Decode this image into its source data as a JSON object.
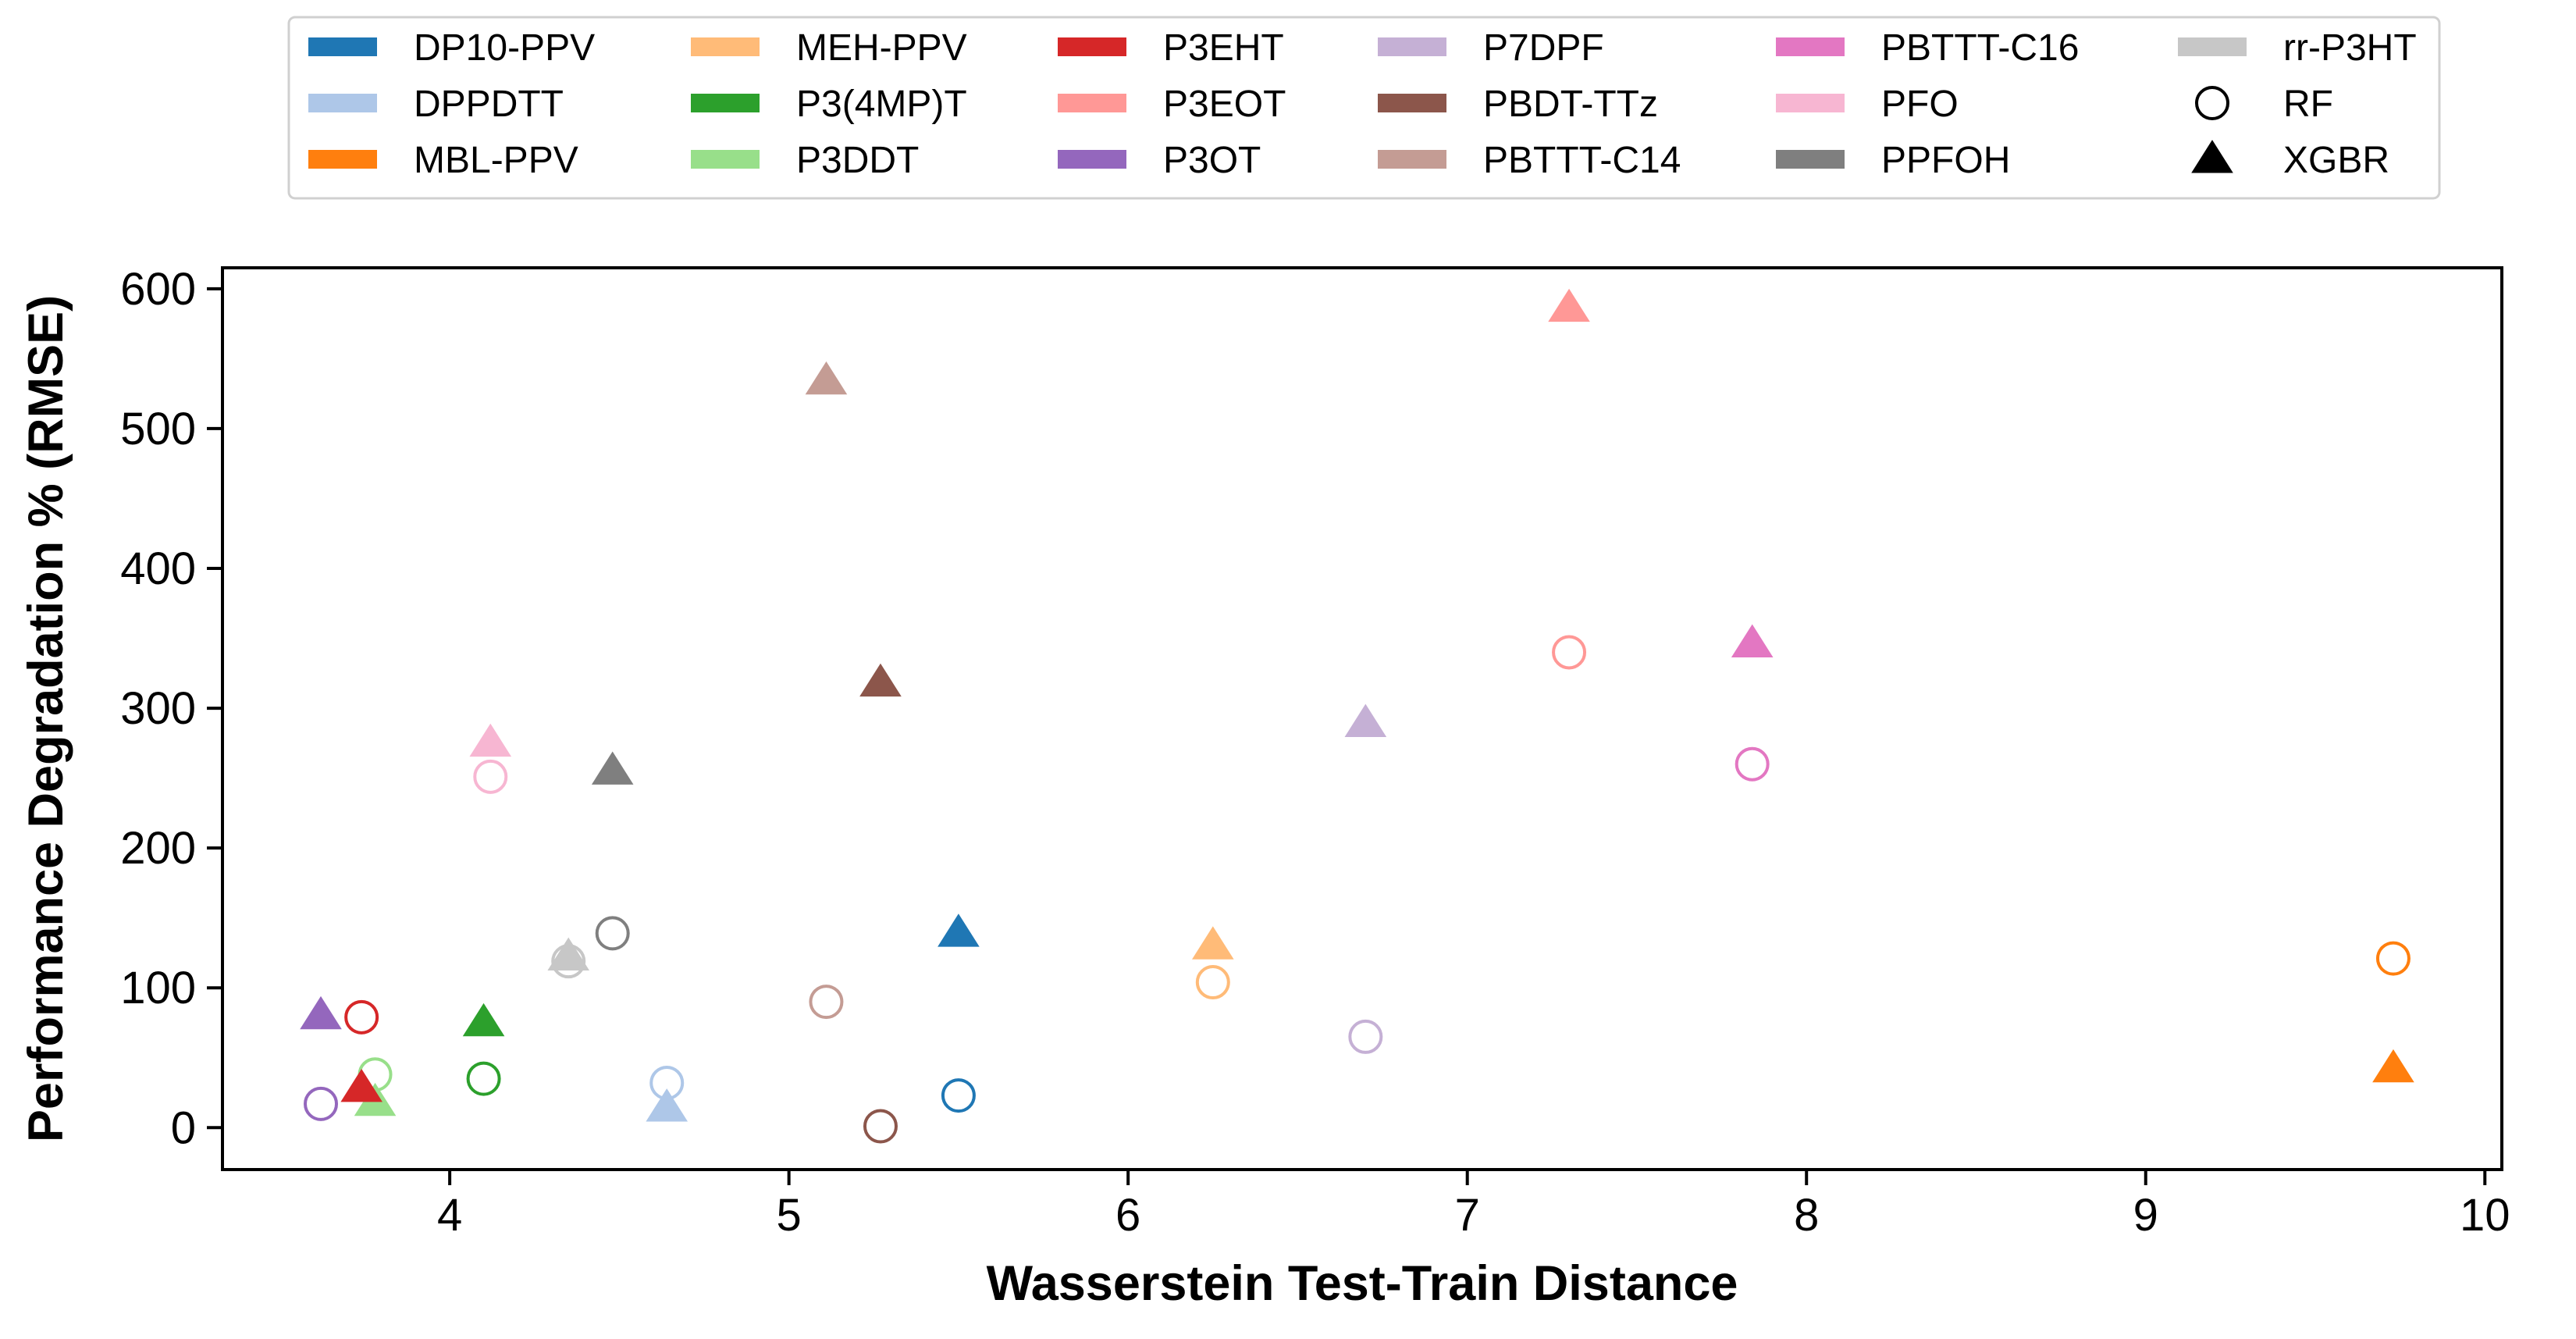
{
  "chart_data": {
    "type": "scatter",
    "title": "",
    "xlabel": "Wasserstein Test-Train Distance",
    "ylabel": "Performance Degradation % (RMSE)",
    "xlim": [
      3.33,
      10.05
    ],
    "ylim": [
      -30,
      615
    ],
    "xticks": [
      4,
      5,
      6,
      7,
      8,
      9,
      10
    ],
    "yticks": [
      0,
      100,
      200,
      300,
      400,
      500,
      600
    ],
    "grid": false,
    "legend_position": "top-center",
    "markers": [
      {
        "name": "RF",
        "shape": "open-circle"
      },
      {
        "name": "XGBR",
        "shape": "filled-triangle"
      }
    ],
    "polymers": [
      {
        "name": "DP10-PPV",
        "color": "#1f77b4",
        "x": 5.5,
        "rf": 23,
        "xgbr": 138
      },
      {
        "name": "DPPDTT",
        "color": "#aec7e8",
        "x": 4.64,
        "rf": 32,
        "xgbr": 13
      },
      {
        "name": "MBL-PPV",
        "color": "#ff7f0e",
        "x": 9.73,
        "rf": 121,
        "xgbr": 41
      },
      {
        "name": "MEH-PPV",
        "color": "#ffbb78",
        "x": 6.25,
        "rf": 104,
        "xgbr": 129
      },
      {
        "name": "P3(4MP)T",
        "color": "#2ca02c",
        "x": 4.1,
        "rf": 35,
        "xgbr": 74
      },
      {
        "name": "P3DDT",
        "color": "#98df8a",
        "x": 3.78,
        "rf": 38,
        "xgbr": 17
      },
      {
        "name": "P3EHT",
        "color": "#d62728",
        "x": 3.74,
        "rf": 79,
        "xgbr": 27
      },
      {
        "name": "P3EOT",
        "color": "#ff9896",
        "x": 7.3,
        "rf": 340,
        "xgbr": 585
      },
      {
        "name": "P3OT",
        "color": "#9467bd",
        "x": 3.62,
        "rf": 17,
        "xgbr": 79
      },
      {
        "name": "P7DPF",
        "color": "#c5b0d5",
        "x": 6.7,
        "rf": 65,
        "xgbr": 288
      },
      {
        "name": "PBDT-TTz",
        "color": "#8c564b",
        "x": 5.27,
        "rf": 1,
        "xgbr": 317
      },
      {
        "name": "PBTTT-C14",
        "color": "#c49c94",
        "x": 5.11,
        "rf": 90,
        "xgbr": 533
      },
      {
        "name": "PBTTT-C16",
        "color": "#e377c2",
        "x": 7.84,
        "rf": 260,
        "xgbr": 345
      },
      {
        "name": "PFO",
        "color": "#f7b6d2",
        "x": 4.12,
        "rf": 251,
        "xgbr": 274
      },
      {
        "name": "PPFOH",
        "color": "#7f7f7f",
        "x": 4.48,
        "rf": 139,
        "xgbr": 254
      },
      {
        "name": "rr-P3HT",
        "color": "#c7c7c7",
        "x": 4.35,
        "rf": 119,
        "xgbr": 121
      }
    ]
  }
}
